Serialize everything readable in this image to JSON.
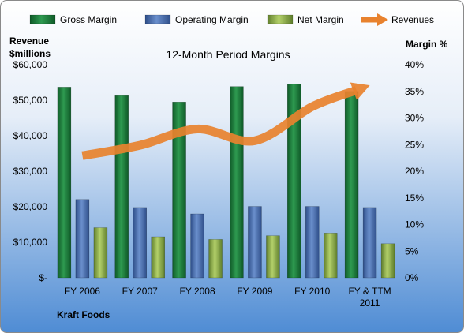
{
  "chart_data": {
    "type": "bar",
    "title": "12-Month Period Margins",
    "left_axis_title": [
      "Revenue",
      "$millions"
    ],
    "right_axis_title": "Margin %",
    "footer_label": "Kraft Foods",
    "categories": [
      "FY 2006",
      "FY 2007",
      "FY 2008",
      "FY 2009",
      "FY 2010",
      [
        "FY & TTM",
        "2011"
      ]
    ],
    "left_axis": {
      "min": 0,
      "max": 60000,
      "step": 10000,
      "tick_labels": [
        "$-",
        "$10,000",
        "$20,000",
        "$30,000",
        "$40,000",
        "$50,000",
        "$60,000"
      ]
    },
    "right_axis": {
      "min": 0,
      "max": 40,
      "step": 5,
      "tick_labels": [
        "0%",
        "5%",
        "10%",
        "15%",
        "20%",
        "25%",
        "30%",
        "35%",
        "40%"
      ]
    },
    "legend_position": "top",
    "series": [
      {
        "name": "Gross Margin",
        "type": "bar",
        "axis": "right",
        "color": "#1e7a3c",
        "values": [
          35.8,
          34.2,
          33.0,
          35.9,
          36.4,
          35.0
        ]
      },
      {
        "name": "Operating Margin",
        "type": "bar",
        "axis": "right",
        "color": "#4a6fb0",
        "values": [
          14.7,
          13.2,
          12.0,
          13.4,
          13.4,
          13.2
        ]
      },
      {
        "name": "Net Margin",
        "type": "bar",
        "axis": "right",
        "color": "#8fb04c",
        "values": [
          9.4,
          7.7,
          7.2,
          7.9,
          8.4,
          6.4
        ]
      },
      {
        "name": "Revenues",
        "type": "arrow-line",
        "axis": "left",
        "color": "#e8822e",
        "values": [
          34400,
          37300,
          41900,
          38600,
          48200,
          54200
        ]
      }
    ],
    "grid": false
  }
}
